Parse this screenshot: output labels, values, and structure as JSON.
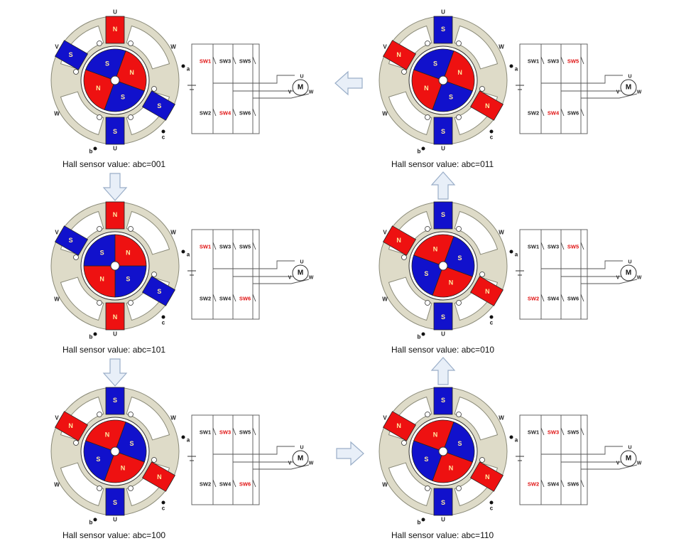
{
  "colors": {
    "north": "#ee1111",
    "south": "#1111cc",
    "ring": "#dedbc8",
    "ring_stroke": "#8a8a78",
    "arrow_fill": "#e8eff8",
    "arrow_stroke": "#9aaec8",
    "active_switch": "#e01010",
    "wire": "#555555"
  },
  "labels": {
    "north": "N",
    "south": "S",
    "motor": "M",
    "phase_u": "U",
    "phase_v": "V",
    "phase_w": "W",
    "sensor_a": "a",
    "sensor_b": "b",
    "sensor_c": "c"
  },
  "panels": [
    {
      "caption": "Hall sensor value: abc=001",
      "switches": [
        "SW1",
        "SW3",
        "SW5",
        "SW2",
        "SW4",
        "SW6"
      ],
      "active": [
        "SW1",
        "SW4"
      ],
      "rotor": [
        "N",
        "S",
        "N",
        "S"
      ],
      "stator": [
        "N",
        "S",
        "S",
        "S"
      ]
    },
    {
      "caption": "Hall sensor value: abc=011",
      "switches": [
        "SW1",
        "SW3",
        "SW5",
        "SW2",
        "SW4",
        "SW6"
      ],
      "active": [
        "SW5",
        "SW4"
      ],
      "rotor": [
        "N",
        "S",
        "N",
        "S"
      ],
      "stator": [
        "S",
        "N",
        "S",
        "N"
      ]
    },
    {
      "caption": "Hall sensor value: abc=101",
      "switches": [
        "SW1",
        "SW3",
        "SW5",
        "SW2",
        "SW4",
        "SW6"
      ],
      "active": [
        "SW1",
        "SW6"
      ],
      "rotor": [
        "S",
        "N",
        "S",
        "N"
      ],
      "stator": [
        "N",
        "S",
        "N",
        "S"
      ]
    },
    {
      "caption": "Hall sensor value: abc=010",
      "switches": [
        "SW1",
        "SW3",
        "SW5",
        "SW2",
        "SW4",
        "SW6"
      ],
      "active": [
        "SW5",
        "SW2"
      ],
      "rotor": [
        "N",
        "S",
        "N",
        "S"
      ],
      "stator": [
        "S",
        "N",
        "S",
        "N"
      ]
    },
    {
      "caption": "Hall sensor value: abc=100",
      "switches": [
        "SW1",
        "SW3",
        "SW5",
        "SW2",
        "SW4",
        "SW6"
      ],
      "active": [
        "SW3",
        "SW6"
      ],
      "rotor": [
        "S",
        "N",
        "S",
        "N"
      ],
      "stator": [
        "S",
        "N",
        "S",
        "N"
      ]
    },
    {
      "caption": "Hall sensor value: abc=110",
      "switches": [
        "SW1",
        "SW3",
        "SW5",
        "SW2",
        "SW4",
        "SW6"
      ],
      "active": [
        "SW3",
        "SW2"
      ],
      "rotor": [
        "S",
        "N",
        "S",
        "N"
      ],
      "stator": [
        "S",
        "N",
        "S",
        "N"
      ]
    }
  ]
}
